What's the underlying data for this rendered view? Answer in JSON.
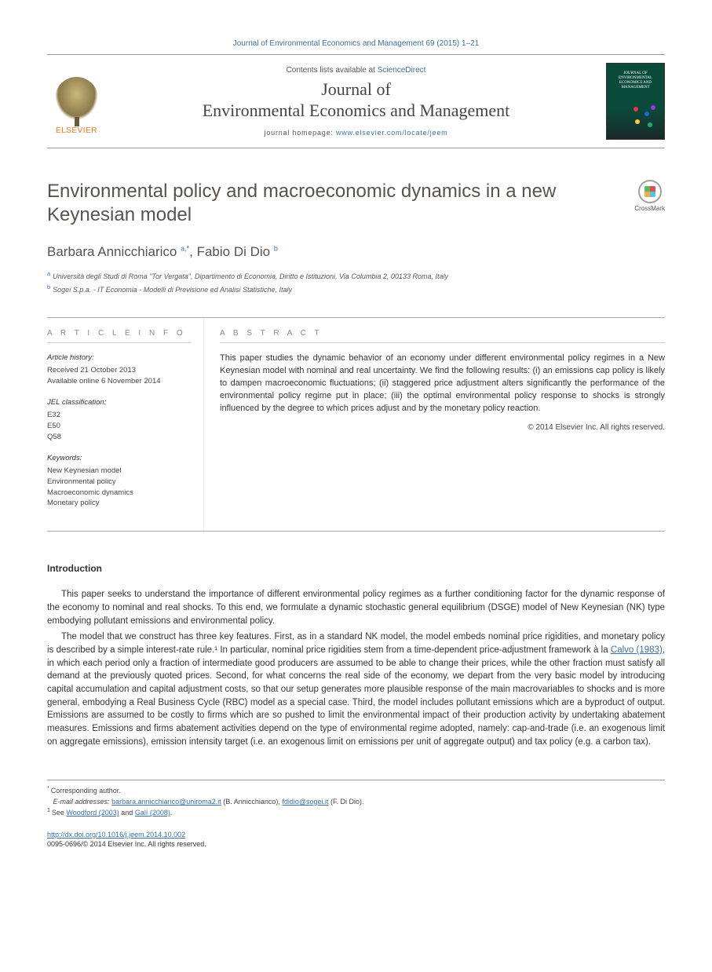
{
  "header": {
    "citation": "Journal of Environmental Economics and Management 69 (2015) 1–21",
    "contents_prefix": "Contents lists available at ",
    "contents_link": "ScienceDirect",
    "journal_name_line1": "Journal of",
    "journal_name_line2": "Environmental Economics and Management",
    "homepage_prefix": "journal homepage: ",
    "homepage_url": "www.elsevier.com/locate/jeem",
    "publisher_brand": "ELSEVIER",
    "cover_title": "JOURNAL OF ENVIRONMENTAL ECONOMICS AND MANAGEMENT",
    "cover_bg": "#0a4a3a",
    "cover_dot_colors": [
      "#e34",
      "#26c",
      "#fc3",
      "#2a6",
      "#93e"
    ]
  },
  "crossmark_label": "CrossMark",
  "article": {
    "title": "Environmental policy and macroeconomic dynamics in a new Keynesian model",
    "authors": [
      {
        "name": "Barbara Annicchiarico",
        "aff": "a",
        "corr": true
      },
      {
        "name": "Fabio Di Dio",
        "aff": "b",
        "corr": false
      }
    ],
    "affiliations": [
      {
        "marker": "a",
        "text": "Università degli Studi di Roma \"Tor Vergata\", Dipartimento di Economia, Diritto e Istituzioni, Via Columbia 2, 00133 Roma, Italy"
      },
      {
        "marker": "b",
        "text": "Sogei S.p.a. - IT Economia - Modelli di Previsione ed Analisi Statistiche, Italy"
      }
    ]
  },
  "info": {
    "heading": "A R T I C L E   I N F O",
    "history_heading": "Article history:",
    "history_lines": [
      "Received 21 October 2013",
      "Available online 6 November 2014"
    ],
    "jel_heading": "JEL classification:",
    "jel_codes": [
      "E32",
      "E50",
      "Q58"
    ],
    "keywords_heading": "Keywords:",
    "keywords": [
      "New Keynesian model",
      "Environmental policy",
      "Macroeconomic dynamics",
      "Monetary policy"
    ]
  },
  "abstract": {
    "heading": "A B S T R A C T",
    "text": "This paper studies the dynamic behavior of an economy under different environmental policy regimes in a New Keynesian model with nominal and real uncertainty. We find the following results: (i) an emissions cap policy is likely to dampen macroeconomic fluctuations; (ii) staggered price adjustment alters significantly the performance of the environmental policy regime put in place; (iii) the optimal environmental policy response to shocks is strongly influenced by the degree to which prices adjust and by the monetary policy reaction.",
    "copyright": "© 2014 Elsevier Inc. All rights reserved."
  },
  "body": {
    "intro_heading": "Introduction",
    "paragraphs": [
      "This paper seeks to understand the importance of different environmental policy regimes as a further conditioning factor for the dynamic response of the economy to nominal and real shocks. To this end, we formulate a dynamic stochastic general equilibrium (DSGE) model of New Keynesian (NK) type embodying pollutant emissions and environmental policy.",
      "The model that we construct has three key features. First, as in a standard NK model, the model embeds nominal price rigidities, and monetary policy is described by a simple interest-rate rule.¹ In particular, nominal price rigidities stem from a time-dependent price-adjustment framework à la Calvo (1983), in which each period only a fraction of intermediate good producers are assumed to be able to change their prices, while the other fraction must satisfy all demand at the previously quoted prices. Second, for what concerns the real side of the economy, we depart from the very basic model by introducing capital accumulation and capital adjustment costs, so that our setup generates more plausible response of the main macrovariables to shocks and is more general, embodying a Real Business Cycle (RBC) model as a special case. Third, the model includes pollutant emissions which are a byproduct of output. Emissions are assumed to be costly to firms which are so pushed to limit the environmental impact of their production activity by undertaking abatement measures. Emissions and firms abatement activities depend on the type of environmental regime adopted, namely: cap-and-trade (i.e. an exogenous limit on aggregate emissions), emission intensity target (i.e. an exogenous limit on emissions per unit of aggregate output) and tax policy (e.g. a carbon tax)."
    ],
    "link_texts": {
      "calvo": "Calvo (1983)"
    }
  },
  "footnotes": {
    "corr_label": "Corresponding author.",
    "email_label": "E-mail addresses:",
    "emails": [
      {
        "addr": "barbara.annicchiarico@uniroma2.it",
        "who": "(B. Annicchiarico)"
      },
      {
        "addr": "fdidio@sogei.it",
        "who": "(F. Di Dio)"
      }
    ],
    "fn1_prefix": "See ",
    "fn1_ref1": "Woodford (2003)",
    "fn1_mid": " and ",
    "fn1_ref2": "Galí (2008)",
    "fn1_suffix": "."
  },
  "doi": {
    "url": "http://dx.doi.org/10.1016/j.jeem.2014.10.002",
    "issn_line": "0095-0696/© 2014 Elsevier Inc. All rights reserved."
  },
  "colors": {
    "link": "#3a6ea5",
    "text": "#333333",
    "muted": "#888888",
    "rule": "#999999",
    "brand_orange": "#e67817"
  }
}
